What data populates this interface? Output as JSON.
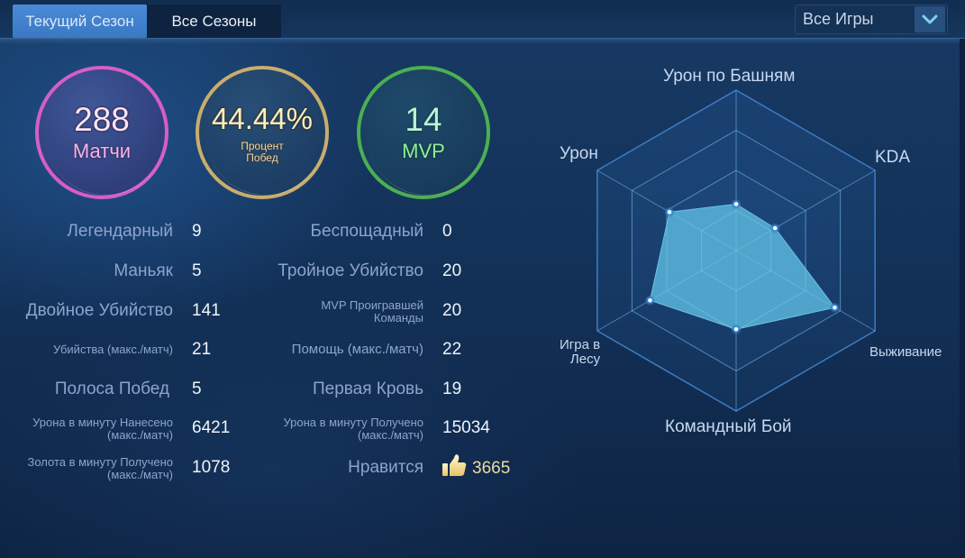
{
  "header": {
    "tabs": [
      {
        "label": "Текущий Сезон",
        "active": true
      },
      {
        "label": "Все Сезоны",
        "active": false
      }
    ],
    "filter": {
      "selected": "Все Игры",
      "icon": "chevron-down-icon"
    }
  },
  "summary": {
    "matches": {
      "value": "288",
      "label": "Матчи",
      "color": "#d55ec9"
    },
    "win_rate": {
      "value": "44.44%",
      "label_line1": "Процент",
      "label_line2": "Побед",
      "color": "#c9ad6c"
    },
    "mvp": {
      "value": "14",
      "label": "MVP",
      "color": "#4caf53"
    }
  },
  "stats_left": [
    {
      "label": "Легендарный",
      "value": "9"
    },
    {
      "label": "Маньяк",
      "value": "5"
    },
    {
      "label": "Двойное Убийство",
      "value": "141"
    },
    {
      "label": "Убийства (макс./матч)",
      "value": "21"
    },
    {
      "label": "Полоса Побед",
      "value": "5"
    },
    {
      "label_line1": "Урона в минуту Нанесено",
      "label_line2": "(макс./матч)",
      "value": "6421"
    },
    {
      "label_line1": "Золота в минуту Получено",
      "label_line2": "(макс./матч)",
      "value": "1078"
    }
  ],
  "stats_right": [
    {
      "label": "Беспощадный",
      "value": "0"
    },
    {
      "label": "Тройное Убийство",
      "value": "20"
    },
    {
      "label_line1": "MVP Проигравшей",
      "label_line2": "Команды",
      "value": "20"
    },
    {
      "label": "Помощь (макс./матч)",
      "value": "22"
    },
    {
      "label": "Первая Кровь",
      "value": "19"
    },
    {
      "label_line1": "Урона в минуту Получено",
      "label_line2": "(макс./матч)",
      "value": "15034"
    },
    {
      "label": "Нравится",
      "value": "3665",
      "icon": "thumbs-up-icon"
    }
  ],
  "radar": {
    "axes": [
      {
        "label": "Урон по Башням"
      },
      {
        "label": "KDA"
      },
      {
        "label": "Выживание"
      },
      {
        "label": "Командный Бой"
      },
      {
        "label_line1": "Игра в",
        "label_line2": "Лесу"
      },
      {
        "label": "Урон"
      }
    ],
    "fill_color": "#5bb5db",
    "grid_color": "#3a6fb0"
  },
  "chart_data": {
    "type": "radar",
    "title": "",
    "categories": [
      "Урон по Башням",
      "KDA",
      "Выживание",
      "Командный Бой",
      "Игра в Лесу",
      "Урон"
    ],
    "values": [
      0.29,
      0.28,
      0.71,
      0.49,
      0.62,
      0.48
    ],
    "range": [
      0,
      1
    ],
    "grid_rings": 4,
    "legend": "none"
  }
}
